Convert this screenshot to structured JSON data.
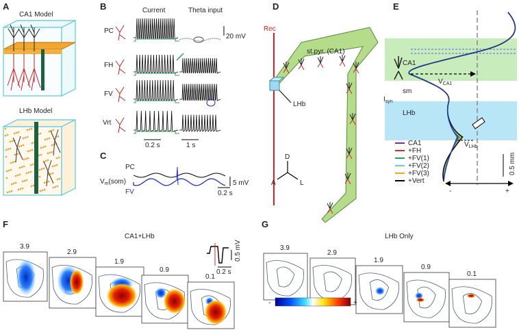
{
  "panel_letters": [
    "A",
    "B",
    "C",
    "D",
    "E",
    "F",
    "G"
  ],
  "panel_a": {
    "top_title": "CA1 Model",
    "bottom_title": "LHb Model"
  },
  "panel_b": {
    "column_headers": [
      "Current",
      "Theta input"
    ],
    "rows": [
      "PC",
      "FH",
      "FV",
      "Vrt"
    ],
    "voltage_scale": "20 mV",
    "time_scales": [
      "0.2 s",
      "1 s"
    ]
  },
  "panel_c": {
    "trace_top": "PC",
    "vm_label": {
      "symbol": "V",
      "subscript": "m",
      "suffix": "(som)"
    },
    "trace_bottom": "FV",
    "voltage_scale": "5 mV",
    "time_scale": "0.2 s"
  },
  "panel_d": {
    "electrode": "Rec",
    "layer": "st.pyr. (CA1)",
    "target": "LHb",
    "axes": [
      "D",
      "A",
      "L"
    ]
  },
  "panel_e": {
    "regions": [
      "CA1",
      "LHb"
    ],
    "isyn": {
      "symbol": "I",
      "subscript": "syn"
    },
    "sm": "sm",
    "v_ca1": {
      "symbol": "V",
      "subscript": "CA1"
    },
    "v_lhb": {
      "symbol": "V",
      "subscript": "LHb"
    },
    "legend": [
      {
        "label": "CA1",
        "color": "#7030a0"
      },
      {
        "label": "+FH",
        "color": "#d62728"
      },
      {
        "label": "+FV(1)",
        "color": "#2ca05a"
      },
      {
        "label": "+FV(2)",
        "color": "#5fd3d8"
      },
      {
        "label": "+FV(3)",
        "color": "#e8b400"
      },
      {
        "label": "+Vert",
        "color": "#000000"
      }
    ],
    "depth_scale": "0.5 mm",
    "axis_signs": [
      "-",
      "+"
    ]
  },
  "panel_f": {
    "title": "CA1+LHb",
    "depths": [
      "3.9",
      "2.9",
      "1.9",
      "0.9",
      "0.1"
    ],
    "inset_scales": [
      "0.5 mV",
      "0.2 s"
    ]
  },
  "panel_g": {
    "title": "LHb Only",
    "depths": [
      "3.9",
      "2.9",
      "1.9",
      "0.9",
      "0.1"
    ],
    "colorbar": [
      "-",
      "+"
    ]
  }
}
